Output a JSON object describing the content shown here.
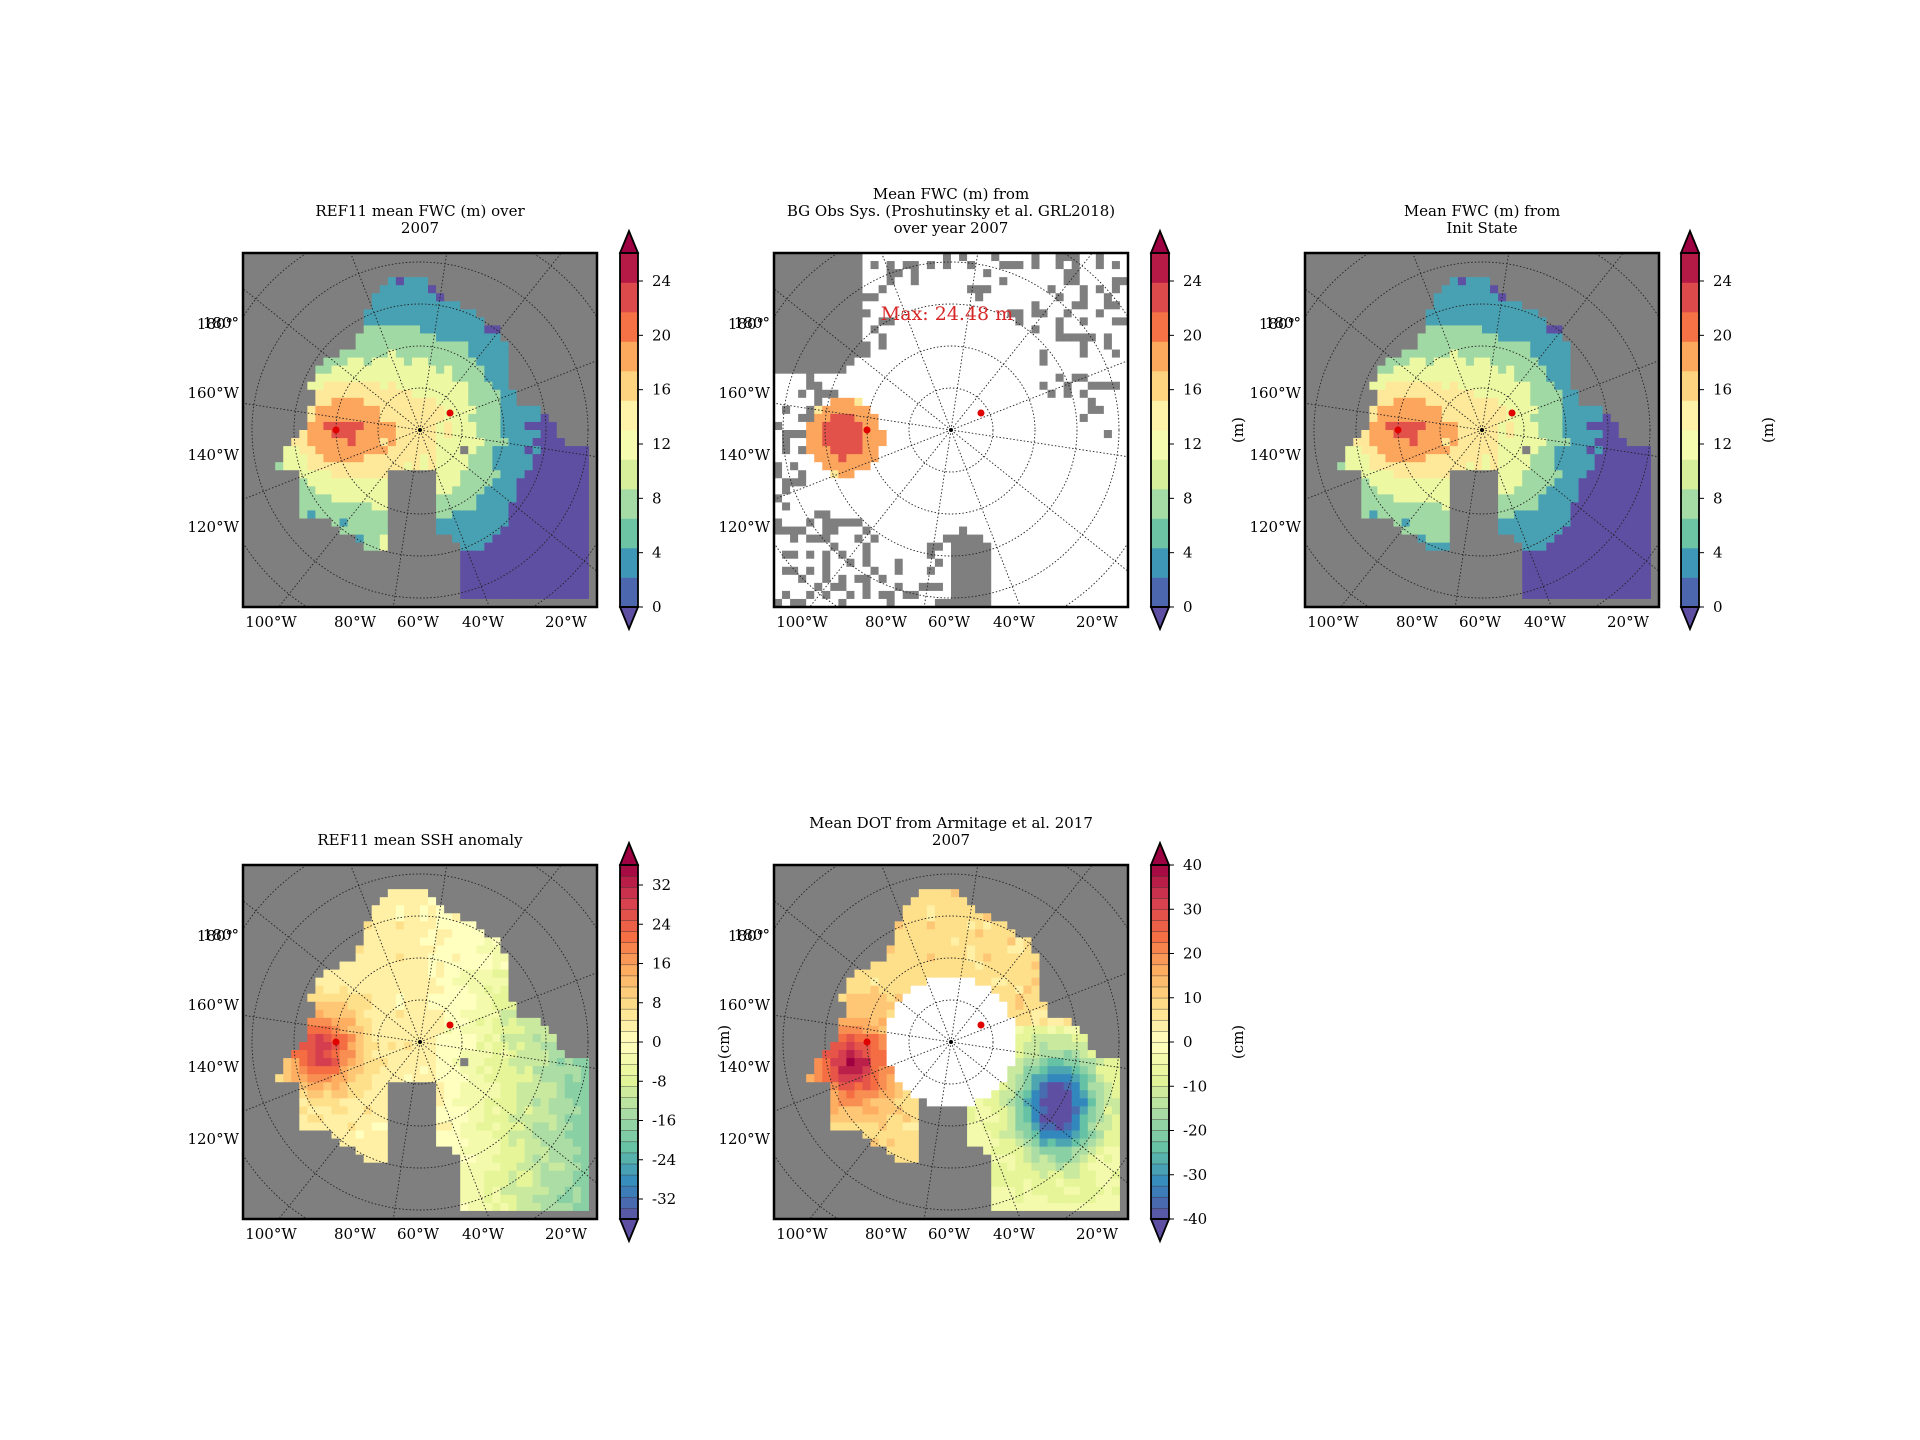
{
  "panels": [
    {
      "id": "fwc-ref11",
      "title_lines": [
        "REF11 mean FWC (m) over",
        "2007"
      ],
      "colorbar": {
        "ticks": [
          "0",
          "4",
          "8",
          "12",
          "16",
          "20",
          "24"
        ],
        "label": "",
        "fine": false,
        "extend": "both"
      },
      "lat_labels": [
        "180°",
        "160°W",
        "140°W",
        "120°W"
      ],
      "lon_labels": [
        "100°W",
        "80°W",
        "60°W",
        "40°W",
        "20°W"
      ],
      "field": "fwc_model",
      "annotation": ""
    },
    {
      "id": "fwc-bgos",
      "title_lines": [
        "Mean FWC (m) from",
        "BG Obs Sys. (Proshutinsky et al. GRL2018)",
        "over year 2007"
      ],
      "colorbar": {
        "ticks": [
          "0",
          "4",
          "8",
          "12",
          "16",
          "20",
          "24"
        ],
        "label": "(m)",
        "fine": false,
        "extend": "both"
      },
      "lat_labels": [
        "180°",
        "160°W",
        "140°W",
        "120°W"
      ],
      "lon_labels": [
        "100°W",
        "80°W",
        "60°W",
        "40°W",
        "20°W"
      ],
      "field": "fwc_obs",
      "annotation": "Max: 24.48 m"
    },
    {
      "id": "fwc-init",
      "title_lines": [
        "Mean FWC (m) from",
        "Init State"
      ],
      "colorbar": {
        "ticks": [
          "0",
          "4",
          "8",
          "12",
          "16",
          "20",
          "24"
        ],
        "label": "(m)",
        "fine": false,
        "extend": "both"
      },
      "lat_labels": [
        "180°",
        "160°W",
        "140°W",
        "120°W"
      ],
      "lon_labels": [
        "100°W",
        "80°W",
        "60°W",
        "40°W",
        "20°W"
      ],
      "field": "fwc_init",
      "annotation": ""
    },
    {
      "id": "ssh-ref11",
      "title_lines": [
        "REF11 mean SSH anomaly"
      ],
      "colorbar": {
        "ticks": [
          "-32",
          "-24",
          "-16",
          "-8",
          "0",
          "8",
          "16",
          "24",
          "32"
        ],
        "label": "",
        "fine": true,
        "extend": "both"
      },
      "lat_labels": [
        "180°",
        "160°W",
        "140°W",
        "120°W"
      ],
      "lon_labels": [
        "100°W",
        "80°W",
        "60°W",
        "40°W",
        "20°W"
      ],
      "field": "ssh",
      "annotation": ""
    },
    {
      "id": "dot-armitage",
      "title_lines": [
        "Mean DOT from Armitage et al. 2017",
        "2007"
      ],
      "colorbar": {
        "ticks": [
          "-40",
          "-30",
          "-20",
          "-10",
          "0",
          "10",
          "20",
          "30",
          "40"
        ],
        "label": "(cm)",
        "fine": true,
        "extend": "both"
      },
      "lat_labels": [
        "180°",
        "160°W",
        "140°W",
        "120°W"
      ],
      "lon_labels": [
        "100°W",
        "80°W",
        "60°W",
        "40°W",
        "20°W"
      ],
      "y_side_label": "(cm)",
      "field": "dot",
      "annotation": ""
    }
  ],
  "colors": {
    "land": "#7f7f7f",
    "colormap": [
      "#5e4fa2",
      "#3288bd",
      "#66c2a5",
      "#abdda4",
      "#e6f598",
      "#ffffbf",
      "#fee08b",
      "#fdae61",
      "#f46d43",
      "#d53e4f",
      "#9e0142"
    ],
    "marker": "#e00000",
    "annotation": "#d62728"
  }
}
